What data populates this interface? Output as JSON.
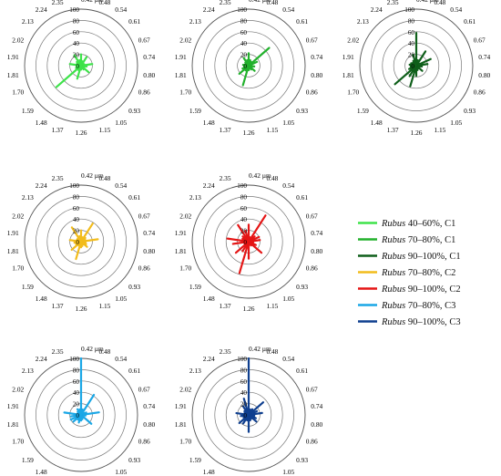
{
  "figure": {
    "spectral_labels": [
      "0.42 µm",
      "0.48",
      "0.54",
      "0.61",
      "0.67",
      "0.74",
      "0.80",
      "0.86",
      "0.93",
      "1.05",
      "1.15",
      "1.26",
      "1.37",
      "1.48",
      "1.59",
      "1.70",
      "1.81",
      "1.91",
      "2.02",
      "2.13",
      "2.24",
      "2.35"
    ],
    "radial_ticks": [
      0,
      20,
      40,
      60,
      80,
      100
    ],
    "rmax": 100
  },
  "legend": {
    "items": [
      {
        "italic": "Rubus",
        "text": " 40–60%, C1",
        "color": "#3ee34a"
      },
      {
        "italic": "Rubus",
        "text": " 70–80%, C1",
        "color": "#22b12c"
      },
      {
        "italic": "Rubus",
        "text": " 90–100%, C1",
        "color": "#0f5f1a"
      },
      {
        "italic": "Rubus",
        "text": " 70–80%, C2",
        "color": "#f2bc1c"
      },
      {
        "italic": "Rubus",
        "text": " 90–100%, C2",
        "color": "#e51515"
      },
      {
        "italic": "Rubus",
        "text": " 70–80%, C3",
        "color": "#1aa7e6"
      },
      {
        "italic": "Rubus",
        "text": " 90–100%, C3",
        "color": "#0f3f8f"
      }
    ]
  },
  "chart_data": [
    {
      "type": "radar",
      "series": [
        {
          "name": "Rubus 40–60%, C1",
          "color": "#3ee34a",
          "values": [
            20,
            8,
            18,
            5,
            6,
            20,
            10,
            6,
            18,
            8,
            5,
            7,
            24,
            9,
            58,
            10,
            8,
            20,
            8,
            10,
            22,
            10
          ]
        }
      ]
    },
    {
      "type": "radar",
      "series": [
        {
          "name": "Rubus 70–80%, C1",
          "color": "#22b12c",
          "values": [
            22,
            10,
            8,
            48,
            16,
            5,
            10,
            6,
            14,
            8,
            5,
            8,
            36,
            10,
            22,
            12,
            8,
            10,
            6,
            8,
            16,
            10
          ]
        }
      ]
    },
    {
      "type": "radar",
      "series": [
        {
          "name": "Rubus 90–100%, C1",
          "color": "#0f5f1a",
          "values": [
            58,
            10,
            30,
            6,
            28,
            20,
            10,
            6,
            14,
            6,
            8,
            18,
            38,
            22,
            50,
            14,
            10,
            12,
            10,
            8,
            10,
            20
          ]
        }
      ]
    },
    {
      "type": "radar",
      "series": [
        {
          "name": "Rubus 70–80%, C2",
          "color": "#f2bc1c",
          "values": [
            20,
            8,
            38,
            10,
            8,
            30,
            8,
            10,
            14,
            6,
            8,
            10,
            32,
            8,
            22,
            10,
            12,
            20,
            8,
            8,
            30,
            10
          ]
        }
      ]
    },
    {
      "type": "radar",
      "series": [
        {
          "name": "Rubus 90–100%, C2",
          "color": "#e51515",
          "values": [
            30,
            8,
            55,
            14,
            20,
            20,
            8,
            14,
            30,
            8,
            6,
            30,
            58,
            20,
            30,
            8,
            28,
            38,
            12,
            14,
            35,
            20
          ]
        }
      ]
    },
    {
      "type": "radar",
      "series": [
        {
          "name": "Rubus 70–80%, C3",
          "color": "#1aa7e6",
          "values": [
            100,
            10,
            42,
            6,
            10,
            32,
            8,
            5,
            24,
            6,
            8,
            10,
            14,
            10,
            18,
            20,
            18,
            30,
            6,
            8,
            12,
            10
          ]
        }
      ]
    },
    {
      "type": "radar",
      "series": [
        {
          "name": "Rubus 90–100%, C3",
          "color": "#0f3f8f",
          "values": [
            100,
            10,
            12,
            34,
            16,
            24,
            10,
            14,
            18,
            8,
            10,
            30,
            10,
            18,
            22,
            10,
            14,
            22,
            8,
            10,
            18,
            30
          ]
        }
      ]
    }
  ]
}
